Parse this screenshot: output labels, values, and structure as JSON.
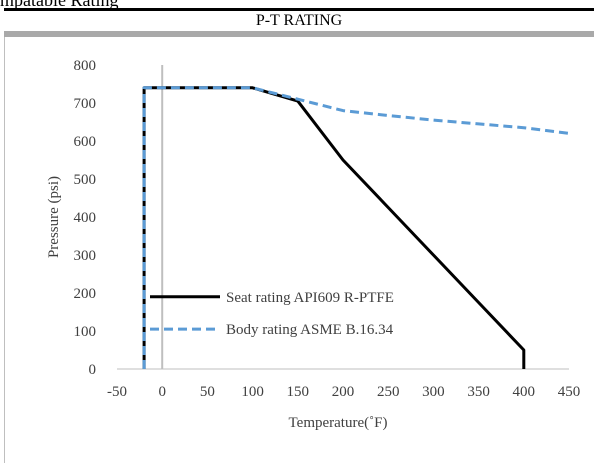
{
  "page": {
    "cut_heading": "mpatable Rating",
    "section_title": "P-T RATING"
  },
  "chart_data": {
    "type": "line",
    "title": "",
    "xlabel": "Temperature(˚F)",
    "ylabel": "Pressure (psi)",
    "xlim": [
      -50,
      450
    ],
    "ylim": [
      0,
      800
    ],
    "xticks": [
      -50,
      0,
      50,
      100,
      150,
      200,
      250,
      300,
      350,
      400,
      450
    ],
    "yticks": [
      0,
      100,
      200,
      300,
      400,
      500,
      600,
      700,
      800
    ],
    "grid": false,
    "legend": "lower-left",
    "series": [
      {
        "name": "Seat rating API609 R-PTFE",
        "color": "#000000",
        "style": "solid",
        "x": [
          -20,
          -20,
          100,
          150,
          200,
          250,
          300,
          350,
          400,
          400
        ],
        "y": [
          0,
          740,
          740,
          705,
          550,
          425,
          300,
          175,
          50,
          0
        ]
      },
      {
        "name": "Body rating ASME B.16.34",
        "color": "#5b9bd5",
        "style": "dashed",
        "x": [
          -20,
          -20,
          100,
          150,
          200,
          250,
          300,
          350,
          400,
          450
        ],
        "y": [
          0,
          740,
          740,
          710,
          680,
          667,
          655,
          645,
          635,
          620
        ]
      }
    ],
    "zero_line_color": "#bfbfbf"
  }
}
